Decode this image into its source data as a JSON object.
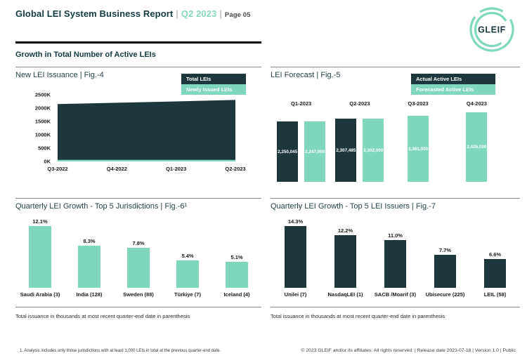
{
  "header": {
    "title": "Global LEI System Business Report",
    "separator": "|",
    "period": "Q2 2023",
    "page": "Page 05",
    "logo_text": "GLEIF"
  },
  "section_heading": "Growth in Total Number of Active LEIs",
  "colors": {
    "dark": "#1E373D",
    "teal": "#7FD7BE",
    "heading": "#143A42"
  },
  "panels": {
    "issuance": {
      "title": "New LEI Issuance | Fig.-4",
      "legend": [
        {
          "label": "Total LEIs",
          "color": "dark"
        },
        {
          "label": "Newly Issued LEIs",
          "color": "teal"
        }
      ]
    },
    "forecast": {
      "title": "LEI Forecast | Fig.-5",
      "legend": [
        {
          "label": "Actual Active LEIs",
          "color": "dark"
        },
        {
          "label": "Forecasted Active LEIs",
          "color": "teal"
        }
      ]
    },
    "jurisdictions": {
      "title": "Quarterly LEI Growth - Top 5 Jurisdictions | Fig.-6¹",
      "note": "Total issuance in thousands at most recent quarter-end date in parenthesis"
    },
    "issuers": {
      "title": "Quarterly LEI Growth - Top 5 LEI Issuers | Fig.-7",
      "note": "Total issuance in thousands at most recent quarter-end date in parenthesis"
    }
  },
  "chart_data": [
    {
      "id": "new_lei_issuance",
      "type": "area",
      "title": "New LEI Issuance | Fig.-4",
      "x": [
        "Q3-2022",
        "Q4-2022",
        "Q1-2023",
        "Q2-2023"
      ],
      "series": [
        {
          "name": "Total LEIs",
          "values": [
            2150000,
            2200000,
            2250000,
            2307000
          ],
          "color": "#1E373D"
        },
        {
          "name": "Newly Issued LEIs",
          "values": [
            60000,
            60000,
            60000,
            60000
          ],
          "color": "#7FD7BE"
        }
      ],
      "ylim": [
        0,
        2500000
      ],
      "yticks": [
        "2500K",
        "2000K",
        "1500K",
        "1000K",
        "500K",
        "0K"
      ],
      "legend_position": "top-right",
      "grid": false
    },
    {
      "id": "lei_forecast",
      "type": "bar",
      "title": "LEI Forecast | Fig.-5",
      "categories": [
        "Q1-2023",
        "Q2-2023",
        "Q3-2023",
        "Q4-2023"
      ],
      "series": [
        {
          "name": "Actual Active LEIs",
          "color": "#1E373D",
          "values": [
            2250045,
            2307485,
            null,
            null
          ],
          "labels": [
            "2,250,045",
            "2,307,485",
            "",
            ""
          ]
        },
        {
          "name": "Forecasted Active LEIs",
          "color": "#7FD7BE",
          "values": [
            2247000,
            2302000,
            2361000,
            2425000
          ],
          "labels": [
            "2,247,000",
            "2,302,000",
            "2,361,000",
            "2,425,000"
          ]
        }
      ],
      "legend_position": "top-right",
      "grid": false
    },
    {
      "id": "top5_jurisdictions",
      "type": "bar",
      "title": "Quarterly LEI Growth - Top 5 Jurisdictions | Fig.-6¹",
      "categories": [
        "Saudi Arabia (3)",
        "India (128)",
        "Sweden (88)",
        "Türkiye (7)",
        "Iceland (4)"
      ],
      "values": [
        12.1,
        8.3,
        7.8,
        5.4,
        5.1
      ],
      "labels": [
        "12.1%",
        "8.3%",
        "7.8%",
        "5.4%",
        "5.1%"
      ],
      "color": "#7FD7BE",
      "grid": false
    },
    {
      "id": "top5_issuers",
      "type": "bar",
      "title": "Quarterly LEI Growth - Top 5 LEI Issuers | Fig.-7",
      "categories": [
        "Unilei (7)",
        "NasdaqLEI (1)",
        "SACB /Moarif (3)",
        "Ubisecure (225)",
        "LEIL (58)"
      ],
      "values": [
        14.3,
        12.2,
        11.0,
        7.7,
        6.6
      ],
      "labels": [
        "14.3%",
        "12.2%",
        "11.0%",
        "7.7%",
        "6.6%"
      ],
      "color": "#1E373D",
      "grid": false
    }
  ],
  "footer": {
    "footnote": "1. Analysis includes only those jurisdictions with at least 1,000 LEIs in total at the previous quarter-end date.",
    "copyright": "© 2023 GLEIF and/or its affiliates. All rights reserved. | Release date 2023-07-18 | Version 1.0 | Public"
  }
}
